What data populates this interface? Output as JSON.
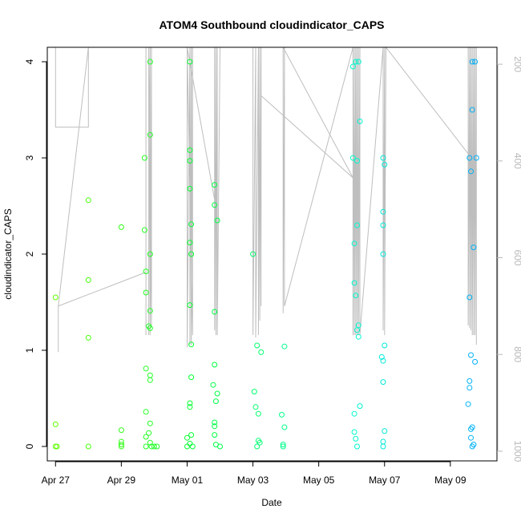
{
  "chart_data": {
    "type": "scatter",
    "title": "ATOM4 Southbound cloudindicator_CAPS",
    "xlabel": "Date",
    "ylabel": "cloudindicator_CAPS",
    "xlim": [
      "2016-04-26T18:00",
      "2016-05-10T10:00"
    ],
    "ylim": [
      -0.15,
      4.15
    ],
    "x_ticks": [
      {
        "date": "2016-04-27",
        "label": "Apr 27"
      },
      {
        "date": "2016-04-29",
        "label": "Apr 29"
      },
      {
        "date": "2016-05-01",
        "label": "May 01"
      },
      {
        "date": "2016-05-03",
        "label": "May 03"
      },
      {
        "date": "2016-05-05",
        "label": "May 05"
      },
      {
        "date": "2016-05-07",
        "label": "May 07"
      },
      {
        "date": "2016-05-09",
        "label": "May 09"
      }
    ],
    "y_ticks": [
      0,
      1,
      2,
      3,
      4
    ],
    "right_axis": {
      "ylim": [
        1020,
        165
      ],
      "ticks": [
        200,
        400,
        600,
        800,
        1000
      ],
      "color": "#b8b8b8"
    },
    "point_color_ramp": [
      "#66ff00",
      "#00ff33",
      "#00ffcc",
      "#00a3ff"
    ],
    "line_color": "#bebebe",
    "grid": false,
    "legend": "none",
    "series": [
      {
        "points": [
          [
            "2016-04-27T00:00",
            1.55
          ],
          [
            "2016-04-27T00:00",
            0.23
          ],
          [
            "2016-04-27T00:00",
            0.0
          ],
          [
            "2016-04-27T01:00",
            0.0
          ],
          [
            "2016-04-28T00:00",
            2.56
          ],
          [
            "2016-04-28T00:00",
            1.73
          ],
          [
            "2016-04-28T00:00",
            1.13
          ],
          [
            "2016-04-28T00:00",
            0.0
          ],
          [
            "2016-04-29T00:00",
            2.28
          ],
          [
            "2016-04-29T00:00",
            0.17
          ],
          [
            "2016-04-29T00:00",
            0.05
          ],
          [
            "2016-04-29T00:00",
            0.02
          ],
          [
            "2016-04-29T00:00",
            0.0
          ],
          [
            "2016-04-29T17:00",
            3.0
          ],
          [
            "2016-04-29T17:00",
            2.25
          ],
          [
            "2016-04-29T18:00",
            1.82
          ],
          [
            "2016-04-29T18:00",
            1.6
          ],
          [
            "2016-04-29T18:00",
            0.81
          ],
          [
            "2016-04-29T18:00",
            0.36
          ],
          [
            "2016-04-29T18:00",
            0.1
          ],
          [
            "2016-04-29T18:00",
            0.0
          ],
          [
            "2016-04-29T21:00",
            4.0
          ],
          [
            "2016-04-29T21:00",
            3.24
          ],
          [
            "2016-04-29T21:00",
            2.0
          ],
          [
            "2016-04-29T21:00",
            1.41
          ],
          [
            "2016-04-29T20:00",
            1.25
          ],
          [
            "2016-04-29T21:00",
            1.23
          ],
          [
            "2016-04-29T21:00",
            0.74
          ],
          [
            "2016-04-29T21:00",
            0.69
          ],
          [
            "2016-04-29T21:00",
            0.24
          ],
          [
            "2016-04-29T20:00",
            0.14
          ],
          [
            "2016-04-29T21:00",
            0.04
          ],
          [
            "2016-04-29T22:00",
            0.0
          ],
          [
            "2016-04-30T00:00",
            0.0
          ],
          [
            "2016-04-30T02:00",
            0.0
          ],
          [
            "2016-05-01T02:00",
            4.0
          ],
          [
            "2016-05-01T02:00",
            3.08
          ],
          [
            "2016-05-01T02:00",
            2.97
          ],
          [
            "2016-05-01T02:00",
            2.68
          ],
          [
            "2016-05-01T03:00",
            2.31
          ],
          [
            "2016-05-01T02:00",
            2.12
          ],
          [
            "2016-05-01T03:00",
            2.0
          ],
          [
            "2016-05-01T02:00",
            1.47
          ],
          [
            "2016-05-01T03:00",
            1.06
          ],
          [
            "2016-05-01T03:00",
            0.72
          ],
          [
            "2016-05-01T02:00",
            0.45
          ],
          [
            "2016-05-01T02:00",
            0.41
          ],
          [
            "2016-05-01T03:00",
            0.12
          ],
          [
            "2016-05-01T00:00",
            0.09
          ],
          [
            "2016-05-01T02:00",
            0.03
          ],
          [
            "2016-05-01T04:00",
            0.0
          ],
          [
            "2016-05-01T00:00",
            0.0
          ],
          [
            "2016-05-01T20:00",
            2.72
          ],
          [
            "2016-05-01T20:00",
            2.51
          ],
          [
            "2016-05-01T22:00",
            2.35
          ],
          [
            "2016-05-01T20:00",
            1.4
          ],
          [
            "2016-05-01T20:00",
            0.85
          ],
          [
            "2016-05-01T19:00",
            0.64
          ],
          [
            "2016-05-01T22:00",
            0.55
          ],
          [
            "2016-05-01T21:00",
            0.47
          ],
          [
            "2016-05-01T20:00",
            0.25
          ],
          [
            "2016-05-01T20:00",
            0.21
          ],
          [
            "2016-05-01T20:00",
            0.12
          ],
          [
            "2016-05-01T21:00",
            0.02
          ],
          [
            "2016-05-02T00:00",
            0.0
          ],
          [
            "2016-05-03T00:00",
            2.0
          ],
          [
            "2016-05-03T03:00",
            1.05
          ],
          [
            "2016-05-03T06:00",
            0.98
          ],
          [
            "2016-05-03T01:00",
            0.57
          ],
          [
            "2016-05-03T02:00",
            0.41
          ],
          [
            "2016-05-03T04:00",
            0.34
          ],
          [
            "2016-05-03T04:00",
            0.06
          ],
          [
            "2016-05-03T05:00",
            0.04
          ],
          [
            "2016-05-03T03:00",
            0.0
          ],
          [
            "2016-05-03T23:00",
            1.04
          ],
          [
            "2016-05-03T21:00",
            0.33
          ],
          [
            "2016-05-03T23:00",
            0.2
          ],
          [
            "2016-05-03T22:00",
            0.02
          ],
          [
            "2016-05-03T22:00",
            0.0
          ],
          [
            "2016-05-06T01:00",
            3.95
          ],
          [
            "2016-05-06T03:00",
            4.0
          ],
          [
            "2016-05-06T05:00",
            4.0
          ],
          [
            "2016-05-06T01:00",
            3.0
          ],
          [
            "2016-05-06T04:00",
            2.97
          ],
          [
            "2016-05-06T06:00",
            3.38
          ],
          [
            "2016-05-06T04:00",
            2.3
          ],
          [
            "2016-05-06T02:00",
            2.11
          ],
          [
            "2016-05-06T02:00",
            1.7
          ],
          [
            "2016-05-06T03:00",
            1.57
          ],
          [
            "2016-05-06T05:00",
            1.26
          ],
          [
            "2016-05-06T04:00",
            1.21
          ],
          [
            "2016-05-06T05:00",
            1.14
          ],
          [
            "2016-05-06T06:00",
            0.42
          ],
          [
            "2016-05-06T02:00",
            0.34
          ],
          [
            "2016-05-06T02:00",
            0.15
          ],
          [
            "2016-05-06T03:00",
            0.08
          ],
          [
            "2016-05-06T04:00",
            0.0
          ],
          [
            "2016-05-06T23:00",
            3.0
          ],
          [
            "2016-05-07T00:00",
            2.93
          ],
          [
            "2016-05-06T23:00",
            2.44
          ],
          [
            "2016-05-06T23:00",
            2.3
          ],
          [
            "2016-05-06T23:00",
            2.0
          ],
          [
            "2016-05-07T00:00",
            1.05
          ],
          [
            "2016-05-06T22:00",
            0.93
          ],
          [
            "2016-05-06T23:00",
            0.89
          ],
          [
            "2016-05-06T23:00",
            0.67
          ],
          [
            "2016-05-07T00:00",
            0.16
          ],
          [
            "2016-05-06T23:00",
            0.05
          ],
          [
            "2016-05-06T23:00",
            0.0
          ],
          [
            "2016-05-09T16:00",
            4.0
          ],
          [
            "2016-05-09T18:00",
            4.0
          ],
          [
            "2016-05-09T16:00",
            3.5
          ],
          [
            "2016-05-09T14:00",
            3.0
          ],
          [
            "2016-05-09T19:00",
            3.0
          ],
          [
            "2016-05-09T15:00",
            2.86
          ],
          [
            "2016-05-09T17:00",
            2.07
          ],
          [
            "2016-05-09T14:00",
            1.55
          ],
          [
            "2016-05-09T15:00",
            0.95
          ],
          [
            "2016-05-09T18:00",
            0.88
          ],
          [
            "2016-05-09T14:00",
            0.68
          ],
          [
            "2016-05-09T14:00",
            0.61
          ],
          [
            "2016-05-09T13:00",
            0.44
          ],
          [
            "2016-05-09T16:00",
            0.2
          ],
          [
            "2016-05-09T15:00",
            0.18
          ],
          [
            "2016-05-09T15:00",
            0.09
          ],
          [
            "2016-05-09T17:00",
            0.02
          ],
          [
            "2016-05-09T16:00",
            0.0
          ]
        ]
      },
      {
        "axis": "right",
        "points": [
          [
            "2016-04-27T00:00",
            165
          ],
          [
            "2016-04-27T00:00",
            325
          ],
          [
            "2016-04-27T00:00",
            330
          ],
          [
            "2016-04-28T00:00",
            330
          ],
          [
            "2016-04-28T00:00",
            165
          ],
          [
            "2016-04-28T00:00",
            165
          ],
          [
            "2016-04-27T02:00",
            700
          ],
          [
            "2016-04-27T02:00",
            795
          ],
          [
            "2016-04-27T02:00",
            700
          ],
          [
            "2016-04-29T18:00",
            630
          ],
          [
            "2016-04-29T18:00",
            760
          ],
          [
            "2016-04-29T18:00",
            165
          ],
          [
            "2016-04-29T20:00",
            165
          ],
          [
            "2016-04-29T20:00",
            760
          ],
          [
            "2016-04-29T21:00",
            165
          ],
          [
            "2016-04-29T21:00",
            760
          ],
          [
            "2016-04-29T22:00",
            165
          ],
          [
            "2016-04-29T22:00",
            740
          ],
          [
            "2016-04-29T20:00",
            165
          ],
          [
            "2016-04-30T00:00",
            165
          ],
          [
            "2016-05-01T00:00",
            165
          ],
          [
            "2016-05-01T00:00",
            785
          ],
          [
            "2016-05-01T02:00",
            165
          ],
          [
            "2016-05-01T02:00",
            780
          ],
          [
            "2016-05-01T03:00",
            165
          ],
          [
            "2016-05-01T03:00",
            780
          ],
          [
            "2016-05-01T04:00",
            165
          ],
          [
            "2016-05-01T04:00",
            760
          ],
          [
            "2016-05-01T00:00",
            165
          ],
          [
            "2016-05-01T20:00",
            480
          ],
          [
            "2016-05-01T20:00",
            165
          ],
          [
            "2016-05-01T20:00",
            750
          ],
          [
            "2016-05-01T21:00",
            165
          ],
          [
            "2016-05-01T21:00",
            760
          ],
          [
            "2016-05-01T22:00",
            165
          ],
          [
            "2016-05-01T22:00",
            760
          ],
          [
            "2016-05-02T00:00",
            165
          ],
          [
            "2016-05-03T00:00",
            165
          ],
          [
            "2016-05-03T00:00",
            760
          ],
          [
            "2016-05-03T02:00",
            165
          ],
          [
            "2016-05-03T02:00",
            765
          ],
          [
            "2016-05-03T04:00",
            165
          ],
          [
            "2016-05-03T04:00",
            760
          ],
          [
            "2016-05-03T05:00",
            165
          ],
          [
            "2016-05-03T05:00",
            730
          ],
          [
            "2016-05-03T06:00",
            165
          ],
          [
            "2016-05-03T06:00",
            700
          ],
          [
            "2016-05-03T06:00",
            465
          ],
          [
            "2016-05-03T06:00",
            265
          ],
          [
            "2016-05-06T01:00",
            435
          ],
          [
            "2016-05-03T22:00",
            165
          ],
          [
            "2016-05-03T22:00",
            715
          ],
          [
            "2016-05-03T23:00",
            165
          ],
          [
            "2016-05-03T23:00",
            700
          ],
          [
            "2016-05-06T01:00",
            165
          ],
          [
            "2016-05-06T01:00",
            760
          ],
          [
            "2016-05-06T02:00",
            165
          ],
          [
            "2016-05-06T02:00",
            760
          ],
          [
            "2016-05-06T03:00",
            165
          ],
          [
            "2016-05-06T03:00",
            760
          ],
          [
            "2016-05-06T04:00",
            165
          ],
          [
            "2016-05-06T04:00",
            760
          ],
          [
            "2016-05-06T05:00",
            165
          ],
          [
            "2016-05-06T05:00",
            760
          ],
          [
            "2016-05-06T06:00",
            165
          ],
          [
            "2016-05-06T06:00",
            760
          ],
          [
            "2016-05-06T23:00",
            165
          ],
          [
            "2016-05-06T23:00",
            750
          ],
          [
            "2016-05-07T00:00",
            165
          ],
          [
            "2016-05-07T00:00",
            760
          ],
          [
            "2016-05-07T01:00",
            165
          ],
          [
            "2016-05-09T13:00",
            385
          ],
          [
            "2016-05-09T13:00",
            165
          ],
          [
            "2016-05-09T13:00",
            740
          ],
          [
            "2016-05-09T14:00",
            165
          ],
          [
            "2016-05-09T14:00",
            745
          ],
          [
            "2016-05-09T15:00",
            165
          ],
          [
            "2016-05-09T15:00",
            750
          ],
          [
            "2016-05-09T16:00",
            165
          ],
          [
            "2016-05-09T16:00",
            760
          ],
          [
            "2016-05-09T17:00",
            165
          ],
          [
            "2016-05-09T17:00",
            760
          ],
          [
            "2016-05-09T18:00",
            165
          ],
          [
            "2016-05-09T18:00",
            760
          ],
          [
            "2016-05-09T19:00",
            165
          ],
          [
            "2016-05-09T19:00",
            780
          ]
        ]
      }
    ]
  }
}
